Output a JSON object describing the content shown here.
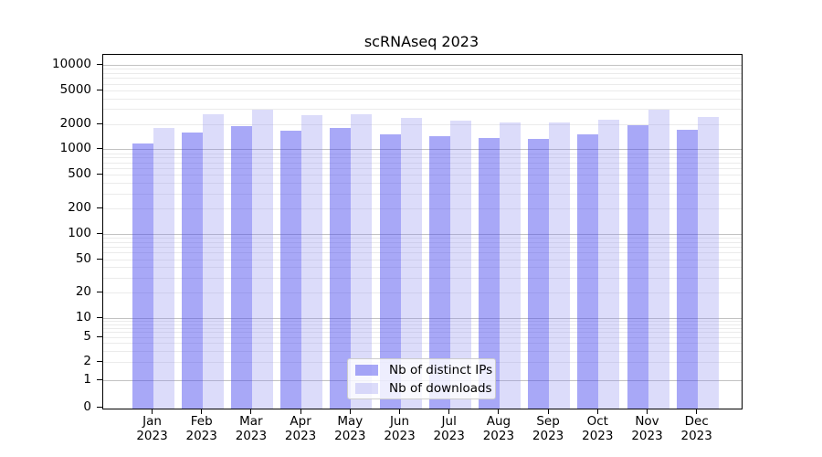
{
  "title": "scRNAseq 2023",
  "chart_data": {
    "type": "bar",
    "title": "scRNAseq 2023",
    "yscale": "symlog",
    "grid": "both",
    "legend_position": "lower center",
    "background_color": "#ffffff",
    "major_grid_color": "#c2c2c2",
    "minor_grid_color": "#ebebeb",
    "categories": [
      "Jan 2023",
      "Feb 2023",
      "Mar 2023",
      "Apr 2023",
      "May 2023",
      "Jun 2023",
      "Jul 2023",
      "Aug 2023",
      "Sep 2023",
      "Oct 2023",
      "Nov 2023",
      "Dec 2023"
    ],
    "y_ticks": [
      0,
      1,
      2,
      5,
      10,
      20,
      50,
      100,
      200,
      500,
      1000,
      2000,
      5000,
      10000
    ],
    "ylim": [
      0,
      13000
    ],
    "series": [
      {
        "name": "Nb of distinct IPs",
        "color": "#a7a7f7",
        "fill": "rgba(70,70,238,0.47)",
        "values": [
          1180,
          1570,
          1900,
          1680,
          1790,
          1520,
          1430,
          1350,
          1320,
          1500,
          1950,
          1700
        ]
      },
      {
        "name": "Nb of downloads",
        "color": "#dcdcf9",
        "fill": "rgba(140,140,240,0.30)",
        "values": [
          1780,
          2600,
          2950,
          2540,
          2600,
          2340,
          2170,
          2100,
          2100,
          2250,
          2930,
          2400
        ]
      }
    ]
  }
}
